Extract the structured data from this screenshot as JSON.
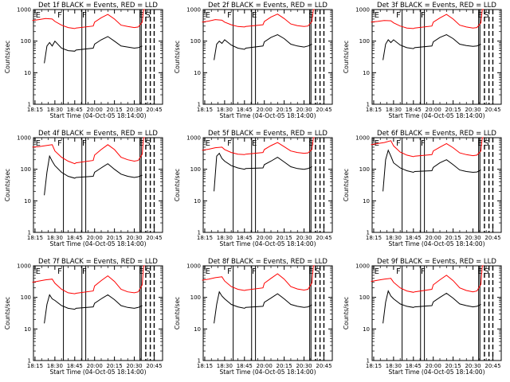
{
  "chart_data": {
    "type": "line",
    "layout": "3x3 grid",
    "log_y": true,
    "ylim": [
      1,
      1000
    ],
    "xlim": [
      "18:13",
      "20:55"
    ],
    "x_tick_labels": [
      "18:15",
      "18:30",
      "18:45",
      "20:00",
      "20:15",
      "20:30",
      "20:45"
    ],
    "y_tick_labels": [
      "1",
      "10",
      "100",
      "1000"
    ],
    "ylabel": "Counts/sec",
    "xlabel": "Start Time (04-Oct-05 18:14:00)",
    "colors": {
      "events": "#000000",
      "lld": "#ff0000"
    },
    "panels": [
      {
        "title": "Det 1f BLACK = Events, RED = LLD",
        "flags": [
          "E",
          "F",
          "F",
          "E",
          "S"
        ],
        "events": {
          "x": [
            "18:22",
            "18:24",
            "18:26",
            "18:28",
            "18:30",
            "18:35",
            "18:40",
            "18:45",
            "18:50",
            "19:55",
            "20:00",
            "20:05",
            "20:10",
            "20:15",
            "20:20",
            "20:25",
            "20:30",
            "20:33",
            "20:36"
          ],
          "y": [
            20,
            70,
            90,
            70,
            100,
            60,
            50,
            48,
            52,
            60,
            80,
            110,
            140,
            100,
            70,
            65,
            60,
            62,
            70
          ]
        },
        "lld": {
          "x": [
            "18:13",
            "18:18",
            "18:23",
            "18:28",
            "18:30",
            "18:35",
            "18:40",
            "18:45",
            "18:50",
            "19:55",
            "20:00",
            "20:05",
            "20:10",
            "20:15",
            "20:20",
            "20:25",
            "20:30",
            "20:33",
            "20:36",
            "20:37",
            "20:38"
          ],
          "y": [
            450,
            480,
            520,
            500,
            420,
            320,
            270,
            250,
            260,
            300,
            400,
            550,
            700,
            500,
            320,
            290,
            270,
            280,
            400,
            1000,
            1000
          ]
        }
      },
      {
        "title": "Det 2f BLACK = Events, RED = LLD",
        "flags": [
          "E",
          "F",
          "E",
          "S"
        ],
        "events": {
          "x": [
            "18:22",
            "18:24",
            "18:26",
            "18:28",
            "18:30",
            "18:35",
            "18:40",
            "18:45",
            "18:50",
            "19:55",
            "20:00",
            "20:05",
            "20:10",
            "20:15",
            "20:20",
            "20:25",
            "20:30",
            "20:33",
            "20:36"
          ],
          "y": [
            25,
            80,
            100,
            85,
            110,
            75,
            60,
            55,
            60,
            70,
            95,
            130,
            160,
            120,
            80,
            70,
            65,
            70,
            80
          ]
        },
        "lld": {
          "x": [
            "18:13",
            "18:18",
            "18:23",
            "18:28",
            "18:30",
            "18:35",
            "18:40",
            "18:45",
            "18:50",
            "19:55",
            "20:00",
            "20:05",
            "20:10",
            "20:15",
            "20:20",
            "20:25",
            "20:30",
            "20:33",
            "20:36",
            "20:37",
            "20:38"
          ],
          "y": [
            400,
            430,
            480,
            460,
            400,
            330,
            290,
            280,
            290,
            330,
            420,
            580,
            720,
            520,
            350,
            310,
            290,
            300,
            420,
            1000,
            1000
          ]
        }
      },
      {
        "title": "Det 3f BLACK = Events, RED = LLD",
        "flags": [
          "E",
          "F",
          "F",
          "E",
          "S"
        ],
        "events": {
          "x": [
            "18:22",
            "18:24",
            "18:26",
            "18:28",
            "18:30",
            "18:35",
            "18:40",
            "18:45",
            "18:50",
            "19:55",
            "20:00",
            "20:05",
            "20:10",
            "20:15",
            "20:20",
            "20:25",
            "20:30",
            "20:33",
            "20:36"
          ],
          "y": [
            25,
            80,
            110,
            90,
            110,
            75,
            62,
            58,
            62,
            70,
            95,
            130,
            160,
            120,
            80,
            72,
            68,
            70,
            80
          ]
        },
        "lld": {
          "x": [
            "18:13",
            "18:18",
            "18:23",
            "18:28",
            "18:30",
            "18:35",
            "18:40",
            "18:45",
            "18:50",
            "19:55",
            "20:00",
            "20:05",
            "20:10",
            "20:15",
            "20:20",
            "20:25",
            "20:30",
            "20:33",
            "20:36",
            "20:37",
            "20:38"
          ],
          "y": [
            400,
            420,
            450,
            440,
            380,
            300,
            260,
            250,
            260,
            300,
            400,
            540,
            700,
            500,
            320,
            280,
            260,
            270,
            380,
            1000,
            1000
          ]
        }
      },
      {
        "title": "Det 4f BLACK = Events, RED = LLD",
        "flags": [
          "E",
          "F",
          "F",
          "E",
          "S"
        ],
        "events": {
          "x": [
            "18:22",
            "18:24",
            "18:26",
            "18:28",
            "18:30",
            "18:35",
            "18:40",
            "18:45",
            "18:50",
            "19:55",
            "20:00",
            "20:05",
            "20:10",
            "20:15",
            "20:20",
            "20:25",
            "20:30",
            "20:33",
            "20:36"
          ],
          "y": [
            15,
            80,
            260,
            180,
            130,
            80,
            60,
            52,
            55,
            60,
            80,
            110,
            150,
            100,
            70,
            60,
            55,
            58,
            65
          ]
        },
        "lld": {
          "x": [
            "18:13",
            "18:18",
            "18:23",
            "18:28",
            "18:30",
            "18:35",
            "18:40",
            "18:45",
            "18:50",
            "19:55",
            "20:00",
            "20:05",
            "20:10",
            "20:15",
            "20:20",
            "20:25",
            "20:30",
            "20:33",
            "20:36",
            "20:37",
            "20:38"
          ],
          "y": [
            500,
            520,
            560,
            600,
            380,
            240,
            180,
            150,
            160,
            190,
            280,
            420,
            600,
            420,
            240,
            200,
            180,
            190,
            300,
            1000,
            1000
          ]
        }
      },
      {
        "title": "Det 5f BLACK = Events, RED = LLD",
        "flags": [
          "E",
          "F",
          "E",
          "S"
        ],
        "events": {
          "x": [
            "18:22",
            "18:24",
            "18:26",
            "18:28",
            "18:30",
            "18:35",
            "18:40",
            "18:45",
            "18:50",
            "19:55",
            "20:00",
            "20:05",
            "20:10",
            "20:15",
            "20:20",
            "20:25",
            "20:30",
            "20:33",
            "20:36"
          ],
          "y": [
            20,
            260,
            320,
            220,
            180,
            130,
            110,
            100,
            105,
            110,
            140,
            180,
            240,
            170,
            120,
            105,
            100,
            105,
            120
          ]
        },
        "lld": {
          "x": [
            "18:13",
            "18:18",
            "18:23",
            "18:28",
            "18:30",
            "18:35",
            "18:40",
            "18:45",
            "18:50",
            "19:55",
            "20:00",
            "20:05",
            "20:10",
            "20:15",
            "20:20",
            "20:25",
            "20:30",
            "20:33",
            "20:36",
            "20:37",
            "20:38"
          ],
          "y": [
            400,
            430,
            480,
            500,
            420,
            340,
            300,
            290,
            300,
            340,
            420,
            560,
            700,
            520,
            380,
            340,
            320,
            330,
            420,
            1000,
            1000
          ]
        }
      },
      {
        "title": "Det 6f BLACK = Events, RED = LLD",
        "flags": [
          "E",
          "F",
          "F",
          "E",
          "S"
        ],
        "events": {
          "x": [
            "18:22",
            "18:24",
            "18:26",
            "18:28",
            "18:30",
            "18:35",
            "18:40",
            "18:45",
            "18:50",
            "19:55",
            "20:00",
            "20:05",
            "20:10",
            "20:15",
            "20:20",
            "20:25",
            "20:30",
            "20:33",
            "20:36"
          ],
          "y": [
            20,
            200,
            400,
            260,
            160,
            110,
            90,
            80,
            85,
            90,
            115,
            160,
            200,
            140,
            95,
            85,
            80,
            82,
            95
          ]
        },
        "lld": {
          "x": [
            "18:13",
            "18:18",
            "18:23",
            "18:28",
            "18:30",
            "18:35",
            "18:40",
            "18:45",
            "18:50",
            "19:55",
            "20:00",
            "20:05",
            "20:10",
            "20:15",
            "20:20",
            "20:25",
            "20:30",
            "20:33",
            "20:36",
            "20:37",
            "20:38"
          ],
          "y": [
            600,
            650,
            700,
            800,
            550,
            350,
            280,
            250,
            260,
            290,
            380,
            500,
            650,
            480,
            330,
            290,
            270,
            280,
            380,
            1000,
            1000
          ]
        }
      },
      {
        "title": "Det 7f BLACK = Events, RED = LLD",
        "flags": [
          "E",
          "F",
          "F",
          "E",
          "S"
        ],
        "events": {
          "x": [
            "18:22",
            "18:24",
            "18:26",
            "18:28",
            "18:30",
            "18:35",
            "18:40",
            "18:45",
            "18:50",
            "19:55",
            "20:00",
            "20:05",
            "20:10",
            "20:15",
            "20:20",
            "20:25",
            "20:30",
            "20:33",
            "20:36"
          ],
          "y": [
            15,
            60,
            120,
            90,
            80,
            55,
            45,
            42,
            45,
            50,
            65,
            90,
            120,
            85,
            55,
            48,
            45,
            48,
            55
          ]
        },
        "lld": {
          "x": [
            "18:13",
            "18:18",
            "18:23",
            "18:28",
            "18:30",
            "18:35",
            "18:40",
            "18:45",
            "18:50",
            "19:55",
            "20:00",
            "20:05",
            "20:10",
            "20:15",
            "20:20",
            "20:25",
            "20:30",
            "20:33",
            "20:36",
            "20:37",
            "20:38"
          ],
          "y": [
            300,
            330,
            360,
            380,
            280,
            180,
            140,
            130,
            135,
            160,
            230,
            340,
            480,
            320,
            180,
            150,
            140,
            150,
            250,
            1000,
            1000
          ]
        }
      },
      {
        "title": "Det 8f BLACK = Events, RED = LLD",
        "flags": [
          "E",
          "F",
          "F",
          "E",
          "S"
        ],
        "events": {
          "x": [
            "18:22",
            "18:24",
            "18:26",
            "18:28",
            "18:30",
            "18:35",
            "18:40",
            "18:45",
            "18:50",
            "19:55",
            "20:00",
            "20:05",
            "20:10",
            "20:15",
            "20:20",
            "20:25",
            "20:30",
            "20:33",
            "20:36"
          ],
          "y": [
            15,
            60,
            150,
            110,
            90,
            60,
            50,
            45,
            48,
            52,
            70,
            95,
            130,
            90,
            60,
            52,
            48,
            50,
            58
          ]
        },
        "lld": {
          "x": [
            "18:13",
            "18:18",
            "18:23",
            "18:28",
            "18:30",
            "18:35",
            "18:40",
            "18:45",
            "18:50",
            "19:55",
            "20:00",
            "20:05",
            "20:10",
            "20:15",
            "20:20",
            "20:25",
            "20:30",
            "20:33",
            "20:36",
            "20:37",
            "20:38"
          ],
          "y": [
            350,
            380,
            420,
            450,
            330,
            220,
            180,
            165,
            170,
            200,
            280,
            400,
            560,
            380,
            220,
            185,
            170,
            180,
            290,
            1000,
            1000
          ]
        }
      },
      {
        "title": "Det 9f BLACK = Events, RED = LLD",
        "flags": [
          "E",
          "F",
          "F",
          "E",
          "S"
        ],
        "events": {
          "x": [
            "18:22",
            "18:24",
            "18:26",
            "18:28",
            "18:30",
            "18:35",
            "18:40",
            "18:45",
            "18:50",
            "19:55",
            "20:00",
            "20:05",
            "20:10",
            "20:15",
            "20:20",
            "20:25",
            "20:30",
            "20:33",
            "20:36"
          ],
          "y": [
            15,
            70,
            160,
            110,
            90,
            62,
            52,
            48,
            50,
            55,
            72,
            100,
            135,
            95,
            62,
            55,
            50,
            52,
            60
          ]
        },
        "lld": {
          "x": [
            "18:13",
            "18:18",
            "18:23",
            "18:28",
            "18:30",
            "18:35",
            "18:40",
            "18:45",
            "18:50",
            "19:55",
            "20:00",
            "20:05",
            "20:10",
            "20:15",
            "20:20",
            "20:25",
            "20:30",
            "20:33",
            "20:36",
            "20:37",
            "20:38"
          ],
          "y": [
            320,
            350,
            380,
            400,
            300,
            200,
            160,
            145,
            150,
            180,
            250,
            360,
            500,
            340,
            200,
            165,
            150,
            160,
            260,
            1000,
            1000
          ]
        }
      }
    ]
  }
}
